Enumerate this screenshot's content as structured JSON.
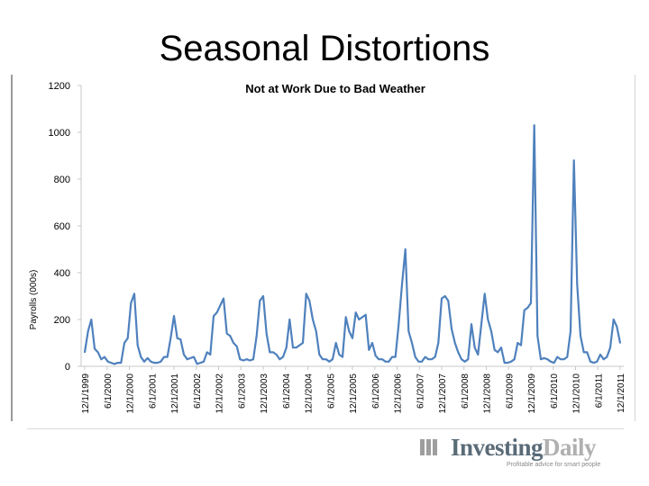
{
  "slide": {
    "title": "Seasonal Distortions"
  },
  "chart_data": {
    "type": "line",
    "title": "Not at Work Due to Bad Weather",
    "xlabel": "",
    "ylabel": "Payrolls (000s)",
    "ylim": [
      0,
      1200
    ],
    "yticks": [
      0,
      200,
      400,
      600,
      800,
      1000,
      1200
    ],
    "grid": false,
    "legend": "none",
    "line_color": "#4f81bd",
    "x_start": "12/1/1999",
    "x_end": "12/1/2011",
    "tick_labels": [
      "12/1/1999",
      "6/1/2000",
      "12/1/2000",
      "6/1/2001",
      "12/1/2001",
      "6/1/2002",
      "12/1/2002",
      "6/1/2003",
      "12/1/2003",
      "6/1/2004",
      "12/1/2004",
      "6/1/2005",
      "12/1/2005",
      "6/1/2006",
      "12/1/2006",
      "6/1/2007",
      "12/1/2007",
      "6/1/2008",
      "12/1/2008",
      "6/1/2009",
      "12/1/2009",
      "6/1/2010",
      "12/1/2010",
      "6/1/2011",
      "12/1/2011"
    ],
    "series": [
      {
        "values": [
          60,
          150,
          200,
          75,
          60,
          30,
          40,
          20,
          15,
          10,
          15,
          15,
          100,
          120,
          270,
          310,
          90,
          40,
          20,
          35,
          20,
          15,
          15,
          20,
          40,
          40,
          120,
          215,
          120,
          115,
          50,
          30,
          35,
          40,
          10,
          15,
          20,
          60,
          50,
          215,
          230,
          260,
          290,
          140,
          130,
          100,
          85,
          30,
          25,
          30,
          25,
          30,
          130,
          280,
          300,
          140,
          60,
          60,
          50,
          30,
          40,
          80,
          200,
          80,
          80,
          90,
          100,
          310,
          280,
          200,
          150,
          50,
          30,
          30,
          20,
          30,
          100,
          50,
          40,
          210,
          150,
          120,
          230,
          200,
          210,
          220,
          70,
          100,
          45,
          30,
          30,
          20,
          20,
          40,
          40,
          180,
          350,
          500,
          150,
          100,
          40,
          20,
          20,
          40,
          30,
          30,
          40,
          100,
          290,
          300,
          280,
          160,
          100,
          60,
          30,
          20,
          30,
          180,
          80,
          50,
          180,
          310,
          200,
          150,
          70,
          60,
          80,
          15,
          15,
          20,
          30,
          100,
          90,
          240,
          250,
          270,
          1030,
          130,
          30,
          35,
          30,
          20,
          15,
          40,
          30,
          30,
          40,
          150,
          880,
          350,
          130,
          60,
          60,
          20,
          15,
          20,
          50,
          30,
          40,
          80,
          200,
          170,
          100
        ]
      }
    ]
  },
  "logo": {
    "word1": "Investing",
    "word2": "Daily",
    "tagline": "Profitable advice for smart people"
  }
}
